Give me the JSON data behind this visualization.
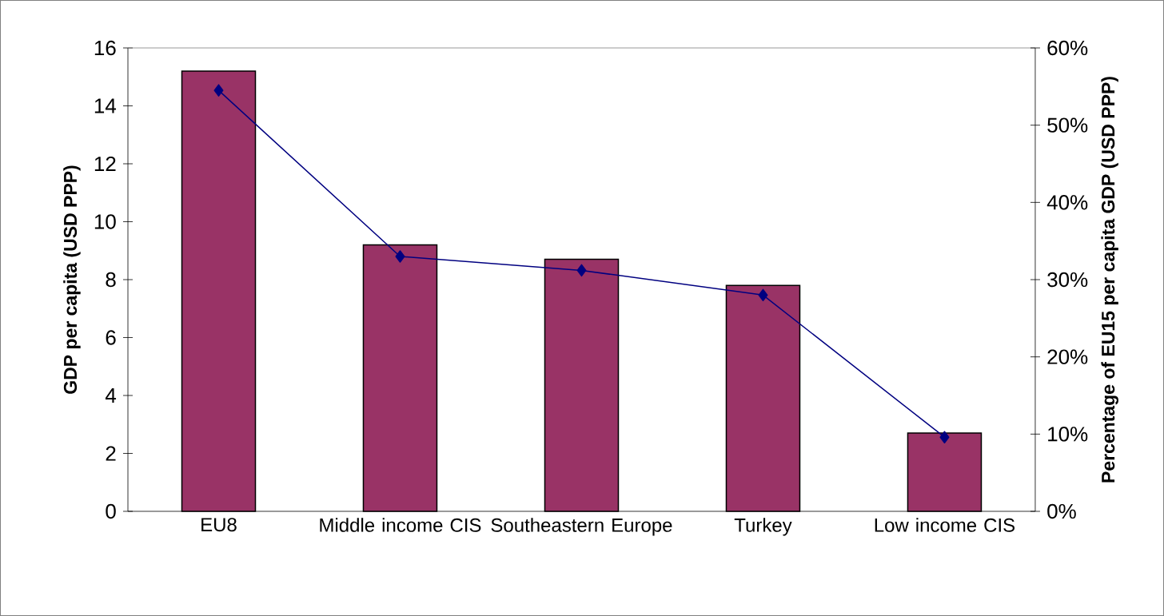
{
  "chart_data": {
    "type": "bar",
    "categories": [
      "EU8",
      "Middle income CIS",
      "Southeastern Europe",
      "Turkey",
      "Low  income CIS"
    ],
    "ylabel": "GDP per capita (USD PPP)",
    "y2label": "Percentage of EU15 per capita GDP (USD PPP)",
    "ylim": [
      0,
      16
    ],
    "yticks": [
      0,
      2,
      4,
      6,
      8,
      10,
      12,
      14,
      16
    ],
    "y2lim": [
      0,
      60
    ],
    "y2ticks": [
      {
        "value": 0,
        "label": "0%"
      },
      {
        "value": 10,
        "label": "10%"
      },
      {
        "value": 20,
        "label": "20%"
      },
      {
        "value": 30,
        "label": "30%"
      },
      {
        "value": 40,
        "label": "40%"
      },
      {
        "value": 50,
        "label": "50%"
      },
      {
        "value": 60,
        "label": "60%"
      }
    ],
    "grid": false,
    "series": [
      {
        "color": "#993366",
        "values": [
          15.2,
          9.2,
          8.7,
          7.8,
          2.7
        ]
      },
      {
        "type": "line",
        "axis": "y2",
        "color": "#000080",
        "marker": "diamond",
        "line_style": "solid",
        "values": [
          54.5,
          33.0,
          31.2,
          28.0,
          9.6
        ]
      }
    ]
  }
}
